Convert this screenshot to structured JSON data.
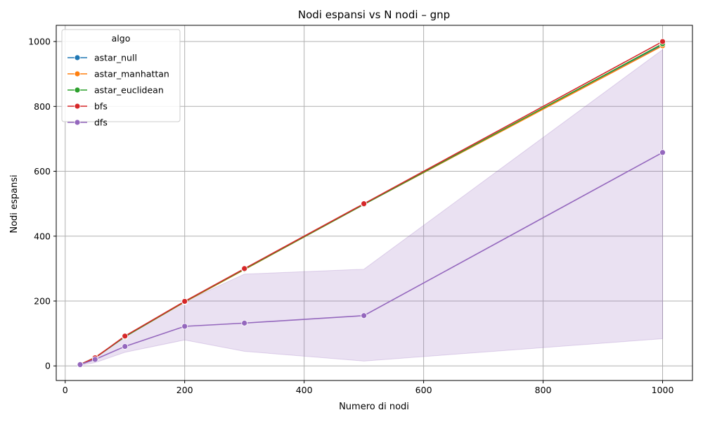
{
  "chart_data": {
    "type": "line",
    "title": "Nodi espansi vs N nodi – gnp",
    "xlabel": "Numero di nodi",
    "ylabel": "Nodi espansi",
    "xlim": [
      -15,
      1050
    ],
    "ylim": [
      -45,
      1050
    ],
    "xticks": [
      0,
      200,
      400,
      600,
      800,
      1000
    ],
    "yticks": [
      0,
      200,
      400,
      600,
      800,
      1000
    ],
    "grid": true,
    "legend": {
      "title": "algo",
      "position": "top-left"
    },
    "series": [
      {
        "name": "astar_null",
        "color": "#1f77b4",
        "x": [
          25,
          50,
          100,
          200,
          300,
          500,
          1000
        ],
        "y": [
          4,
          25,
          90,
          198,
          298,
          498,
          990
        ]
      },
      {
        "name": "astar_manhattan",
        "color": "#ff7f0e",
        "x": [
          25,
          50,
          100,
          200,
          300,
          500,
          1000
        ],
        "y": [
          4,
          26,
          90,
          197,
          297,
          498,
          987
        ]
      },
      {
        "name": "astar_euclidean",
        "color": "#2ca02c",
        "x": [
          25,
          50,
          100,
          200,
          300,
          500,
          1000
        ],
        "y": [
          4,
          25,
          90,
          198,
          298,
          498,
          993
        ]
      },
      {
        "name": "bfs",
        "color": "#d62728",
        "x": [
          25,
          50,
          100,
          200,
          300,
          500,
          1000
        ],
        "y": [
          4,
          25,
          92,
          199,
          300,
          500,
          1000
        ]
      },
      {
        "name": "dfs",
        "color": "#9467bd",
        "x": [
          25,
          50,
          100,
          200,
          300,
          500,
          1000
        ],
        "y": [
          4,
          20,
          60,
          122,
          132,
          155,
          658
        ],
        "band_low": [
          2,
          10,
          42,
          80,
          45,
          15,
          84
        ],
        "band_high": [
          6,
          28,
          90,
          198,
          283,
          298,
          975
        ]
      }
    ]
  }
}
